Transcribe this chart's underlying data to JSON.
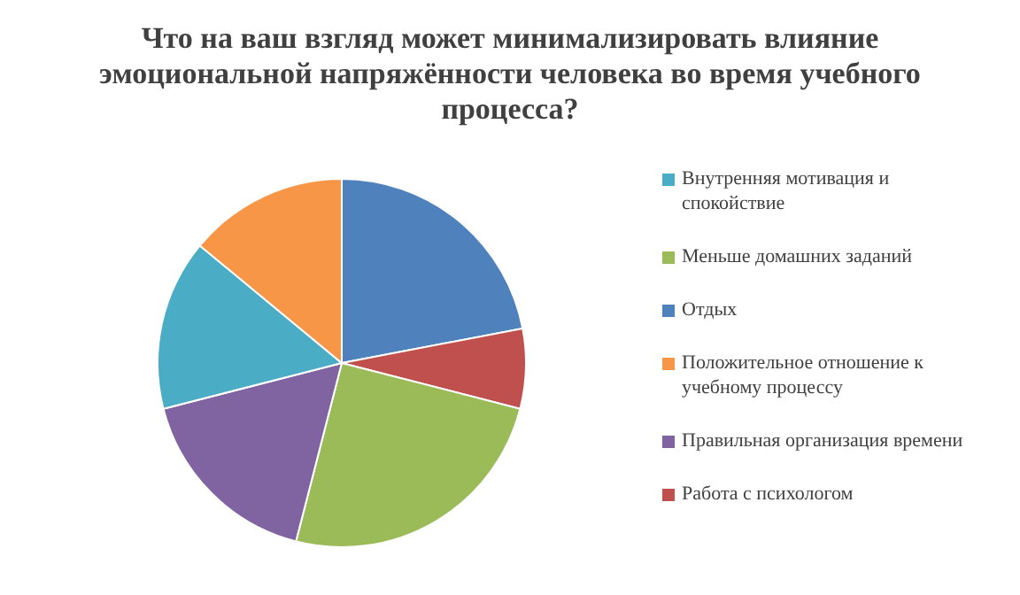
{
  "chart_data": {
    "type": "pie",
    "title": "Что на ваш взгляд может минимализировать влияние эмоциональной напряжённости человека во время учебного процесса?",
    "categories": [
      "Отдых",
      "Работа с психологом",
      "Меньше домашних заданий",
      "Правильная организация времени",
      "Внутренняя мотивация и спокойствие",
      "Положительное отношение к учебному процессу"
    ],
    "values": [
      22,
      7,
      25,
      17,
      15,
      14
    ],
    "colors": [
      "#4f81bd",
      "#c0504d",
      "#9bbb59",
      "#8064a2",
      "#4bacc6",
      "#f79646"
    ],
    "legend": "right"
  }
}
